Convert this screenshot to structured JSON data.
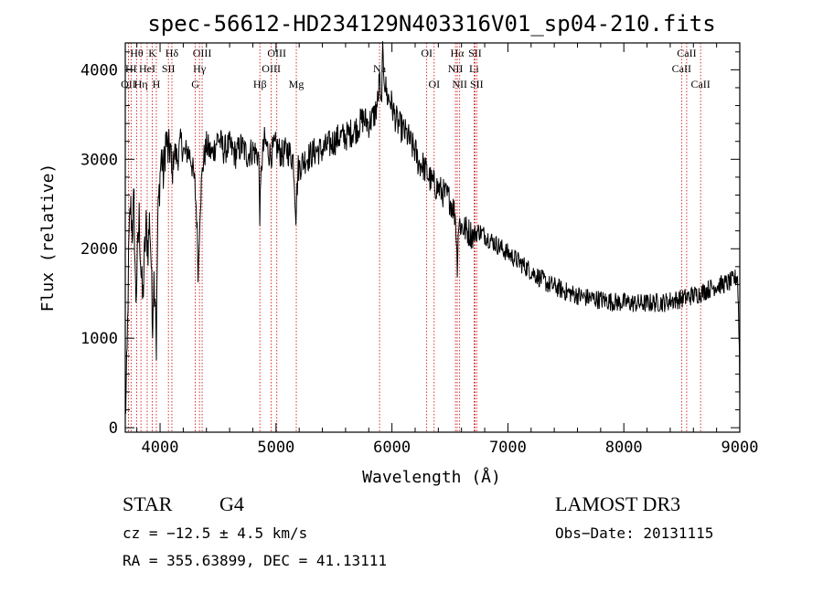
{
  "chart_data": {
    "type": "line",
    "title": "spec-56612-HD234129N403316V01_sp04-210.fits",
    "xlabel": "Wavelength (Å)",
    "ylabel": "Flux (relative)",
    "xlim": [
      3700,
      9000
    ],
    "ylim": [
      -50,
      4300
    ],
    "xticks": [
      4000,
      5000,
      6000,
      7000,
      8000,
      9000
    ],
    "yticks": [
      0,
      1000,
      2000,
      3000,
      4000
    ],
    "line_color": "#000000",
    "marker_color": "#cc0000",
    "spectrum": [
      [
        3700,
        100
      ],
      [
        3715,
        700
      ],
      [
        3730,
        2000
      ],
      [
        3745,
        2500
      ],
      [
        3760,
        2200
      ],
      [
        3775,
        2550
      ],
      [
        3790,
        1400
      ],
      [
        3805,
        1900
      ],
      [
        3820,
        2350
      ],
      [
        3835,
        1800
      ],
      [
        3850,
        1400
      ],
      [
        3865,
        1900
      ],
      [
        3880,
        2250
      ],
      [
        3895,
        2000
      ],
      [
        3910,
        2350
      ],
      [
        3925,
        1800
      ],
      [
        3933,
        1100
      ],
      [
        3945,
        1700
      ],
      [
        3960,
        1500
      ],
      [
        3968,
        900
      ],
      [
        3980,
        2300
      ],
      [
        3995,
        2700
      ],
      [
        4010,
        3050
      ],
      [
        4030,
        2800
      ],
      [
        4050,
        3250
      ],
      [
        4070,
        3050
      ],
      [
        4090,
        3150
      ],
      [
        4102,
        2750
      ],
      [
        4120,
        3100
      ],
      [
        4150,
        3000
      ],
      [
        4180,
        3200
      ],
      [
        4210,
        3050
      ],
      [
        4240,
        3100
      ],
      [
        4270,
        3000
      ],
      [
        4300,
        2700
      ],
      [
        4315,
        2400
      ],
      [
        4330,
        1700
      ],
      [
        4345,
        2500
      ],
      [
        4370,
        2950
      ],
      [
        4400,
        3150
      ],
      [
        4450,
        3050
      ],
      [
        4500,
        3250
      ],
      [
        4550,
        3100
      ],
      [
        4600,
        3150
      ],
      [
        4650,
        3050
      ],
      [
        4700,
        3150
      ],
      [
        4750,
        3050
      ],
      [
        4800,
        3100
      ],
      [
        4850,
        3050
      ],
      [
        4861,
        2350
      ],
      [
        4875,
        2950
      ],
      [
        4900,
        3200
      ],
      [
        4950,
        3050
      ],
      [
        5000,
        3150
      ],
      [
        5050,
        3050
      ],
      [
        5100,
        3100
      ],
      [
        5150,
        3000
      ],
      [
        5172,
        2400
      ],
      [
        5190,
        2900
      ],
      [
        5250,
        3000
      ],
      [
        5300,
        3050
      ],
      [
        5350,
        3100
      ],
      [
        5400,
        3100
      ],
      [
        5450,
        3150
      ],
      [
        5500,
        3200
      ],
      [
        5550,
        3250
      ],
      [
        5600,
        3250
      ],
      [
        5650,
        3300
      ],
      [
        5700,
        3350
      ],
      [
        5750,
        3450
      ],
      [
        5800,
        3400
      ],
      [
        5850,
        3500
      ],
      [
        5880,
        3650
      ],
      [
        5893,
        3950
      ],
      [
        5905,
        3500
      ],
      [
        5920,
        4150
      ],
      [
        5940,
        3850
      ],
      [
        5960,
        3700
      ],
      [
        5990,
        3650
      ],
      [
        6020,
        3500
      ],
      [
        6050,
        3400
      ],
      [
        6080,
        3350
      ],
      [
        6110,
        3300
      ],
      [
        6140,
        3250
      ],
      [
        6170,
        3150
      ],
      [
        6200,
        3100
      ],
      [
        6230,
        2950
      ],
      [
        6260,
        2950
      ],
      [
        6300,
        2850
      ],
      [
        6340,
        2750
      ],
      [
        6380,
        2700
      ],
      [
        6420,
        2650
      ],
      [
        6460,
        2600
      ],
      [
        6500,
        2550
      ],
      [
        6530,
        2450
      ],
      [
        6550,
        2350
      ],
      [
        6563,
        1800
      ],
      [
        6575,
        2300
      ],
      [
        6600,
        2250
      ],
      [
        6650,
        2200
      ],
      [
        6700,
        2150
      ],
      [
        6750,
        2200
      ],
      [
        6800,
        2150
      ],
      [
        6850,
        2100
      ],
      [
        6900,
        2050
      ],
      [
        6950,
        2000
      ],
      [
        7000,
        1950
      ],
      [
        7050,
        1900
      ],
      [
        7100,
        1850
      ],
      [
        7150,
        1800
      ],
      [
        7200,
        1750
      ],
      [
        7250,
        1700
      ],
      [
        7300,
        1650
      ],
      [
        7350,
        1600
      ],
      [
        7400,
        1580
      ],
      [
        7450,
        1550
      ],
      [
        7500,
        1520
      ],
      [
        7550,
        1500
      ],
      [
        7600,
        1480
      ],
      [
        7650,
        1460
      ],
      [
        7700,
        1450
      ],
      [
        7750,
        1440
      ],
      [
        7800,
        1430
      ],
      [
        7850,
        1420
      ],
      [
        7900,
        1410
      ],
      [
        7950,
        1400
      ],
      [
        8000,
        1400
      ],
      [
        8050,
        1395
      ],
      [
        8100,
        1390
      ],
      [
        8150,
        1390
      ],
      [
        8200,
        1390
      ],
      [
        8250,
        1395
      ],
      [
        8300,
        1400
      ],
      [
        8350,
        1400
      ],
      [
        8400,
        1420
      ],
      [
        8450,
        1430
      ],
      [
        8500,
        1440
      ],
      [
        8550,
        1460
      ],
      [
        8600,
        1480
      ],
      [
        8650,
        1500
      ],
      [
        8700,
        1530
      ],
      [
        8750,
        1560
      ],
      [
        8800,
        1590
      ],
      [
        8850,
        1600
      ],
      [
        8900,
        1620
      ],
      [
        8950,
        1650
      ],
      [
        8980,
        1700
      ],
      [
        8995,
        1000
      ],
      [
        9000,
        300
      ]
    ],
    "lines": [
      {
        "label": "Hθ",
        "wavelength": 3798,
        "row": 0
      },
      {
        "label": "OII",
        "wavelength": 3727,
        "row": 2
      },
      {
        "label": "Hη",
        "wavelength": 3835,
        "row": 2
      },
      {
        "label": "HI",
        "wavelength": 3750,
        "row": 1
      },
      {
        "label": "HeI",
        "wavelength": 3889,
        "row": 1
      },
      {
        "label": "K",
        "wavelength": 3933,
        "row": 0
      },
      {
        "label": "H",
        "wavelength": 3968,
        "row": 2
      },
      {
        "label": "Hδ",
        "wavelength": 4102,
        "row": 0
      },
      {
        "label": "SII",
        "wavelength": 4072,
        "row": 1
      },
      {
        "label": "OIII",
        "wavelength": 4363,
        "row": 0
      },
      {
        "label": "Hγ",
        "wavelength": 4340,
        "row": 1
      },
      {
        "label": "G",
        "wavelength": 4304,
        "row": 2
      },
      {
        "label": "OIII",
        "wavelength": 5007,
        "row": 0
      },
      {
        "label": "OIII",
        "wavelength": 4959,
        "row": 1
      },
      {
        "label": "Hβ",
        "wavelength": 4861,
        "row": 2
      },
      {
        "label": "Mg",
        "wavelength": 5175,
        "row": 2
      },
      {
        "label": "Na",
        "wavelength": 5893,
        "row": 1
      },
      {
        "label": "OI",
        "wavelength": 6300,
        "row": 0
      },
      {
        "label": "OI",
        "wavelength": 6364,
        "row": 2
      },
      {
        "label": "Hα",
        "wavelength": 6563,
        "row": 0
      },
      {
        "label": "SII",
        "wavelength": 6716,
        "row": 0
      },
      {
        "label": "NII",
        "wavelength": 6548,
        "row": 1
      },
      {
        "label": "Li",
        "wavelength": 6708,
        "row": 1
      },
      {
        "label": "NII",
        "wavelength": 6584,
        "row": 2
      },
      {
        "label": "SII",
        "wavelength": 6731,
        "row": 2
      },
      {
        "label": "CaII",
        "wavelength": 8542,
        "row": 0
      },
      {
        "label": "CaII",
        "wavelength": 8498,
        "row": 1
      },
      {
        "label": "CaII",
        "wavelength": 8662,
        "row": 2
      }
    ]
  },
  "footer": {
    "class_label": "STAR",
    "subclass": "G4",
    "survey": "LAMOST DR3",
    "cz": "cz = −12.5 ± 4.5 km/s",
    "obs_date": "Obs−Date: 20131115",
    "radec": "RA = 355.63899, DEC =  41.13111"
  }
}
